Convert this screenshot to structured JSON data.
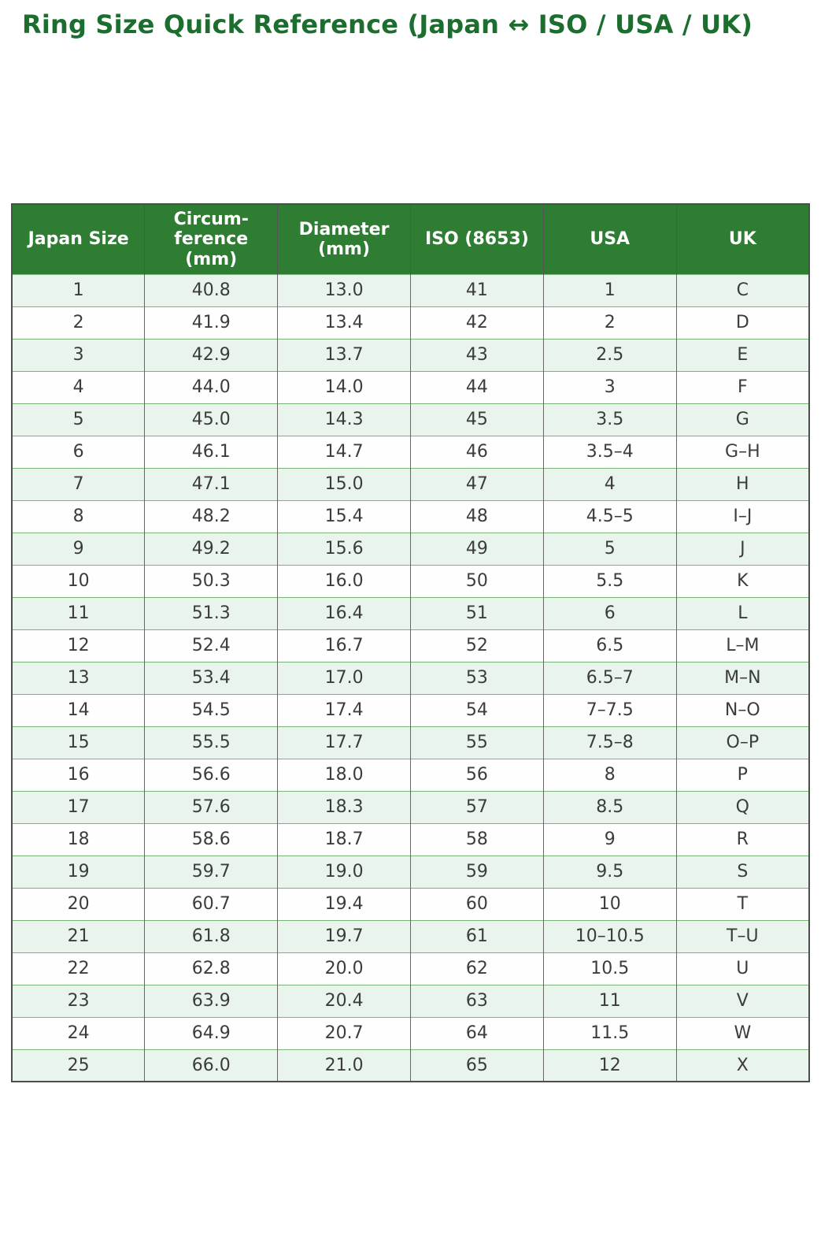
{
  "title": "Ring Size Quick Reference (Japan ↔ ISO / USA / UK)",
  "colors": {
    "title_text": "#1b6e2e",
    "header_bg": "#2e7d32",
    "header_text": "#ffffff",
    "row_alt_bg": "#e9f5ec",
    "body_text": "#3c3c3c"
  },
  "chart_data": {
    "type": "table",
    "title": "Ring Size Quick Reference (Japan ↔ ISO / USA / UK)",
    "columns": [
      "Japan Size",
      "Circum-ference (mm)",
      "Diameter (mm)",
      "ISO (8653)",
      "USA",
      "UK"
    ],
    "rows": [
      [
        "1",
        "40.8",
        "13.0",
        "41",
        "1",
        "C"
      ],
      [
        "2",
        "41.9",
        "13.4",
        "42",
        "2",
        "D"
      ],
      [
        "3",
        "42.9",
        "13.7",
        "43",
        "2.5",
        "E"
      ],
      [
        "4",
        "44.0",
        "14.0",
        "44",
        "3",
        "F"
      ],
      [
        "5",
        "45.0",
        "14.3",
        "45",
        "3.5",
        "G"
      ],
      [
        "6",
        "46.1",
        "14.7",
        "46",
        "3.5–4",
        "G–H"
      ],
      [
        "7",
        "47.1",
        "15.0",
        "47",
        "4",
        "H"
      ],
      [
        "8",
        "48.2",
        "15.4",
        "48",
        "4.5–5",
        "I–J"
      ],
      [
        "9",
        "49.2",
        "15.6",
        "49",
        "5",
        "J"
      ],
      [
        "10",
        "50.3",
        "16.0",
        "50",
        "5.5",
        "K"
      ],
      [
        "11",
        "51.3",
        "16.4",
        "51",
        "6",
        "L"
      ],
      [
        "12",
        "52.4",
        "16.7",
        "52",
        "6.5",
        "L–M"
      ],
      [
        "13",
        "53.4",
        "17.0",
        "53",
        "6.5–7",
        "M–N"
      ],
      [
        "14",
        "54.5",
        "17.4",
        "54",
        "7–7.5",
        "N–O"
      ],
      [
        "15",
        "55.5",
        "17.7",
        "55",
        "7.5–8",
        "O–P"
      ],
      [
        "16",
        "56.6",
        "18.0",
        "56",
        "8",
        "P"
      ],
      [
        "17",
        "57.6",
        "18.3",
        "57",
        "8.5",
        "Q"
      ],
      [
        "18",
        "58.6",
        "18.7",
        "58",
        "9",
        "R"
      ],
      [
        "19",
        "59.7",
        "19.0",
        "59",
        "9.5",
        "S"
      ],
      [
        "20",
        "60.7",
        "19.4",
        "60",
        "10",
        "T"
      ],
      [
        "21",
        "61.8",
        "19.7",
        "61",
        "10–10.5",
        "T–U"
      ],
      [
        "22",
        "62.8",
        "20.0",
        "62",
        "10.5",
        "U"
      ],
      [
        "23",
        "63.9",
        "20.4",
        "63",
        "11",
        "V"
      ],
      [
        "24",
        "64.9",
        "20.7",
        "64",
        "11.5",
        "W"
      ],
      [
        "25",
        "66.0",
        "21.0",
        "65",
        "12",
        "X"
      ]
    ]
  }
}
